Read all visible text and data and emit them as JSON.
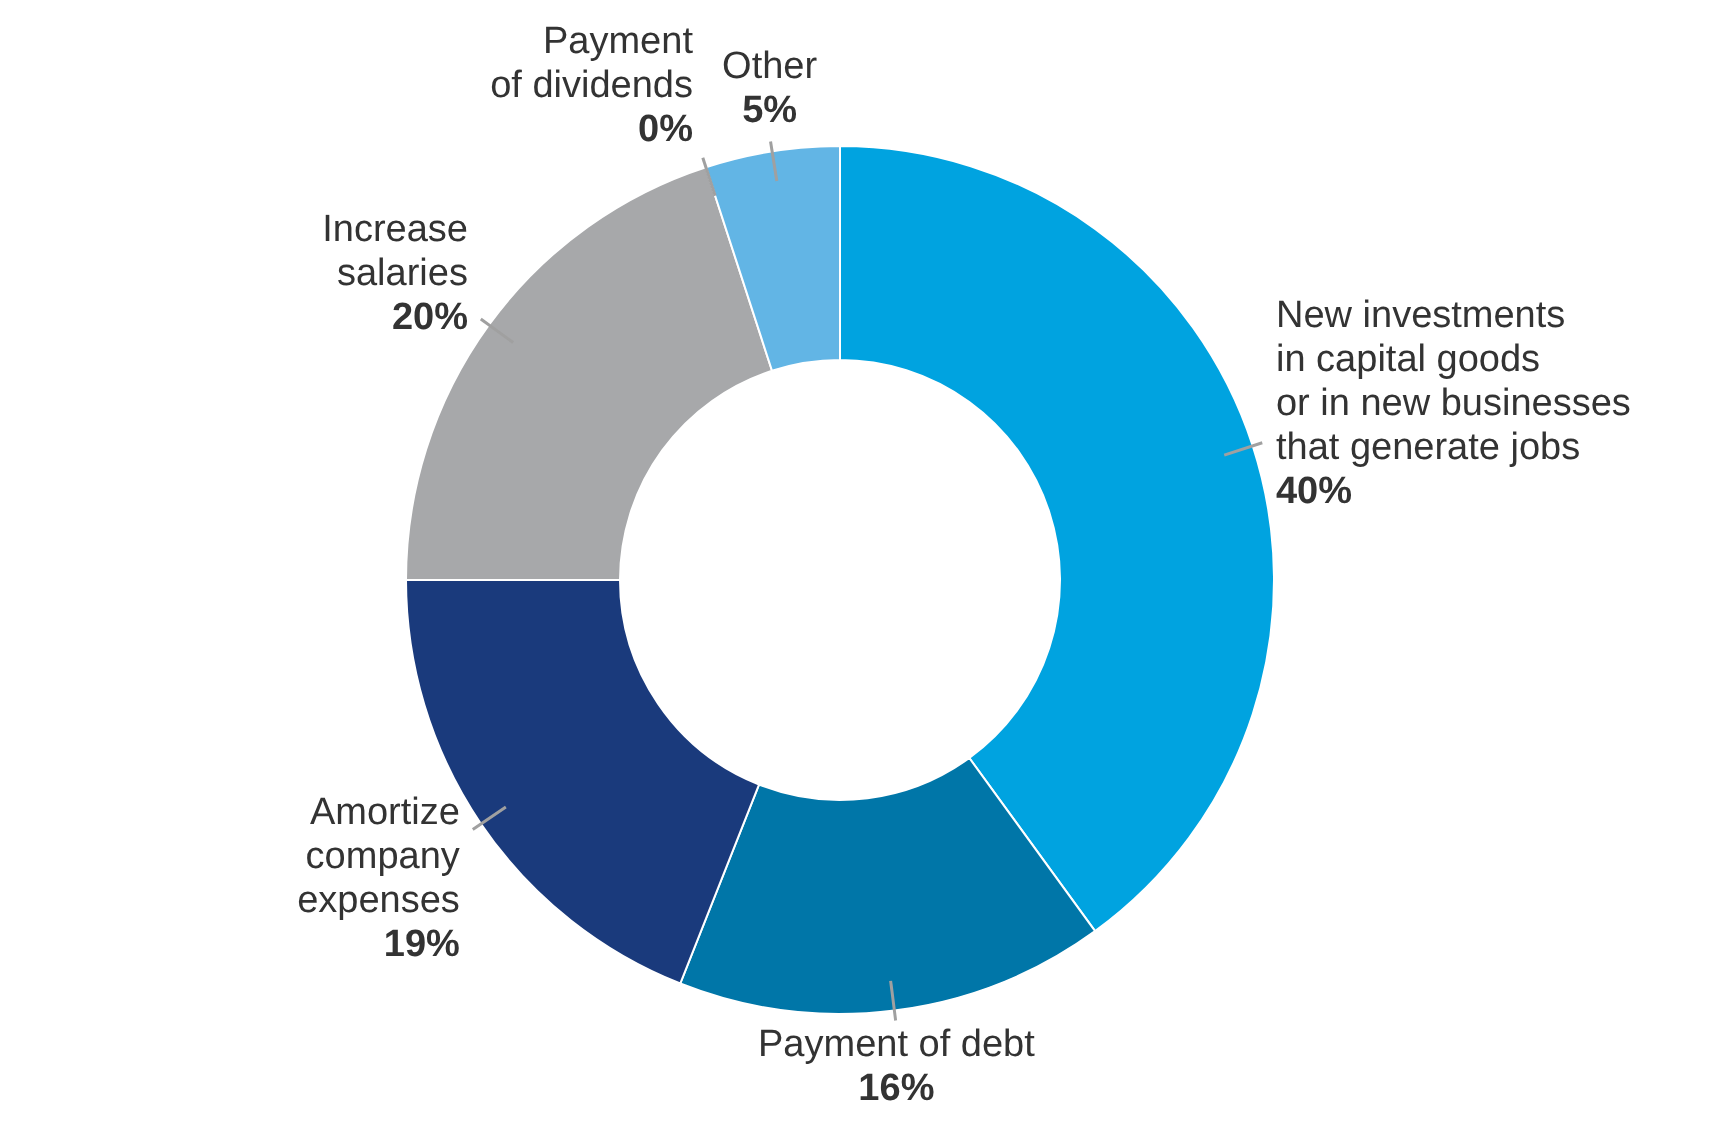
{
  "chart_data": {
    "type": "donut",
    "categories": [
      "New investments\nin capital goods\nor in new businesses\nthat generate jobs",
      "Payment of debt",
      "Amortize\ncompany\nexpenses",
      "Increase\nsalaries",
      "Payment\nof dividends",
      "Other"
    ],
    "values": [
      40,
      16,
      19,
      20,
      0,
      5
    ],
    "value_labels": [
      "40%",
      "16%",
      "19%",
      "20%",
      "0%",
      "5%"
    ],
    "colors": [
      "#00a3e0",
      "#0076a8",
      "#1a3a7c",
      "#a7a8aa",
      "#53565a",
      "#62b5e5"
    ]
  }
}
